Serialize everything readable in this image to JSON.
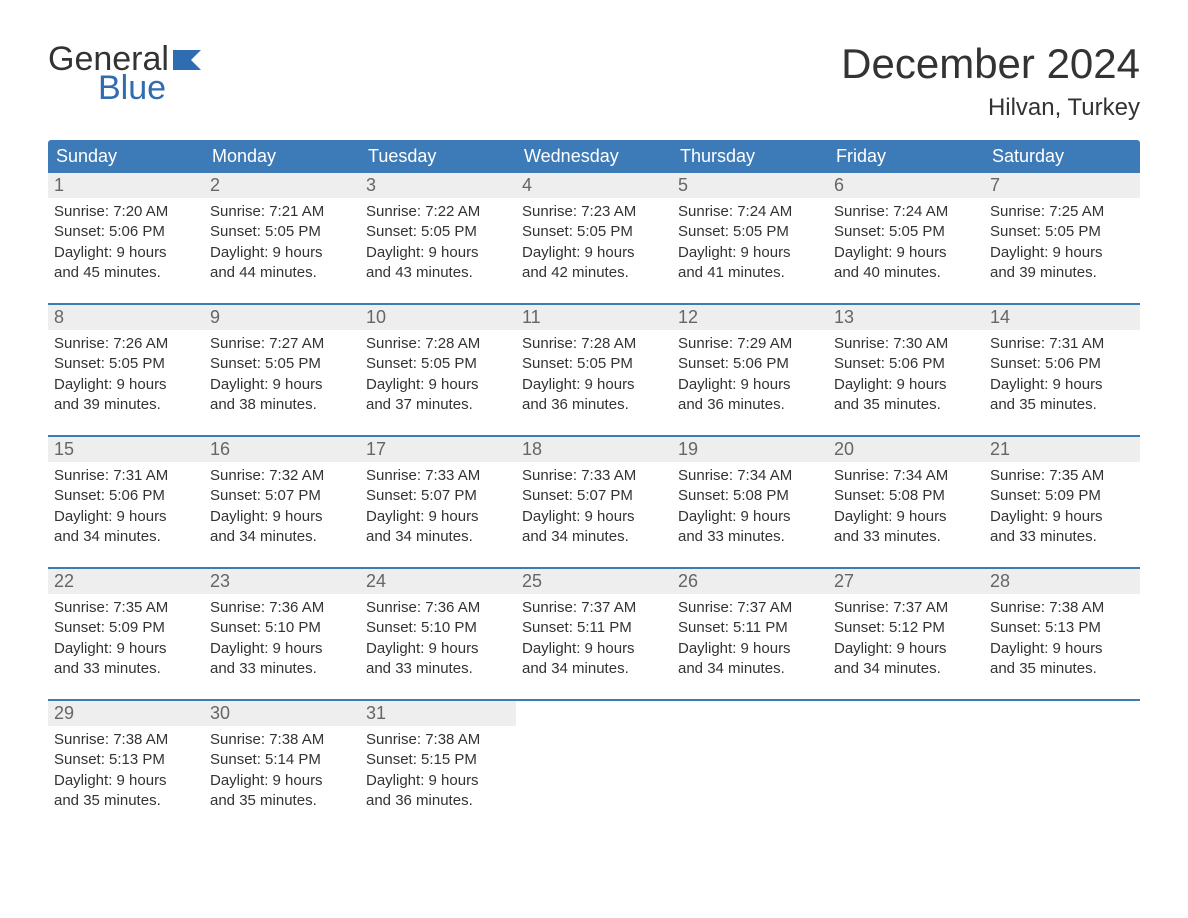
{
  "brand": {
    "word1": "General",
    "word2": "Blue",
    "accent_color": "#2f6db0",
    "text_color": "#333333"
  },
  "title": "December 2024",
  "location": "Hilvan, Turkey",
  "colors": {
    "header_bg": "#3d7ab8",
    "header_text": "#ffffff",
    "daynum_bg": "#eeeeee",
    "daynum_text": "#666666",
    "body_text": "#333333",
    "week_border": "#3d7ab8",
    "page_bg": "#ffffff"
  },
  "fonts": {
    "month_title_size_pt": 32,
    "location_size_pt": 18,
    "weekday_size_pt": 14,
    "daynum_size_pt": 14,
    "body_size_pt": 11
  },
  "weekdays": [
    "Sunday",
    "Monday",
    "Tuesday",
    "Wednesday",
    "Thursday",
    "Friday",
    "Saturday"
  ],
  "weeks": [
    [
      {
        "n": "1",
        "sunrise": "Sunrise: 7:20 AM",
        "sunset": "Sunset: 5:06 PM",
        "d1": "Daylight: 9 hours",
        "d2": "and 45 minutes."
      },
      {
        "n": "2",
        "sunrise": "Sunrise: 7:21 AM",
        "sunset": "Sunset: 5:05 PM",
        "d1": "Daylight: 9 hours",
        "d2": "and 44 minutes."
      },
      {
        "n": "3",
        "sunrise": "Sunrise: 7:22 AM",
        "sunset": "Sunset: 5:05 PM",
        "d1": "Daylight: 9 hours",
        "d2": "and 43 minutes."
      },
      {
        "n": "4",
        "sunrise": "Sunrise: 7:23 AM",
        "sunset": "Sunset: 5:05 PM",
        "d1": "Daylight: 9 hours",
        "d2": "and 42 minutes."
      },
      {
        "n": "5",
        "sunrise": "Sunrise: 7:24 AM",
        "sunset": "Sunset: 5:05 PM",
        "d1": "Daylight: 9 hours",
        "d2": "and 41 minutes."
      },
      {
        "n": "6",
        "sunrise": "Sunrise: 7:24 AM",
        "sunset": "Sunset: 5:05 PM",
        "d1": "Daylight: 9 hours",
        "d2": "and 40 minutes."
      },
      {
        "n": "7",
        "sunrise": "Sunrise: 7:25 AM",
        "sunset": "Sunset: 5:05 PM",
        "d1": "Daylight: 9 hours",
        "d2": "and 39 minutes."
      }
    ],
    [
      {
        "n": "8",
        "sunrise": "Sunrise: 7:26 AM",
        "sunset": "Sunset: 5:05 PM",
        "d1": "Daylight: 9 hours",
        "d2": "and 39 minutes."
      },
      {
        "n": "9",
        "sunrise": "Sunrise: 7:27 AM",
        "sunset": "Sunset: 5:05 PM",
        "d1": "Daylight: 9 hours",
        "d2": "and 38 minutes."
      },
      {
        "n": "10",
        "sunrise": "Sunrise: 7:28 AM",
        "sunset": "Sunset: 5:05 PM",
        "d1": "Daylight: 9 hours",
        "d2": "and 37 minutes."
      },
      {
        "n": "11",
        "sunrise": "Sunrise: 7:28 AM",
        "sunset": "Sunset: 5:05 PM",
        "d1": "Daylight: 9 hours",
        "d2": "and 36 minutes."
      },
      {
        "n": "12",
        "sunrise": "Sunrise: 7:29 AM",
        "sunset": "Sunset: 5:06 PM",
        "d1": "Daylight: 9 hours",
        "d2": "and 36 minutes."
      },
      {
        "n": "13",
        "sunrise": "Sunrise: 7:30 AM",
        "sunset": "Sunset: 5:06 PM",
        "d1": "Daylight: 9 hours",
        "d2": "and 35 minutes."
      },
      {
        "n": "14",
        "sunrise": "Sunrise: 7:31 AM",
        "sunset": "Sunset: 5:06 PM",
        "d1": "Daylight: 9 hours",
        "d2": "and 35 minutes."
      }
    ],
    [
      {
        "n": "15",
        "sunrise": "Sunrise: 7:31 AM",
        "sunset": "Sunset: 5:06 PM",
        "d1": "Daylight: 9 hours",
        "d2": "and 34 minutes."
      },
      {
        "n": "16",
        "sunrise": "Sunrise: 7:32 AM",
        "sunset": "Sunset: 5:07 PM",
        "d1": "Daylight: 9 hours",
        "d2": "and 34 minutes."
      },
      {
        "n": "17",
        "sunrise": "Sunrise: 7:33 AM",
        "sunset": "Sunset: 5:07 PM",
        "d1": "Daylight: 9 hours",
        "d2": "and 34 minutes."
      },
      {
        "n": "18",
        "sunrise": "Sunrise: 7:33 AM",
        "sunset": "Sunset: 5:07 PM",
        "d1": "Daylight: 9 hours",
        "d2": "and 34 minutes."
      },
      {
        "n": "19",
        "sunrise": "Sunrise: 7:34 AM",
        "sunset": "Sunset: 5:08 PM",
        "d1": "Daylight: 9 hours",
        "d2": "and 33 minutes."
      },
      {
        "n": "20",
        "sunrise": "Sunrise: 7:34 AM",
        "sunset": "Sunset: 5:08 PM",
        "d1": "Daylight: 9 hours",
        "d2": "and 33 minutes."
      },
      {
        "n": "21",
        "sunrise": "Sunrise: 7:35 AM",
        "sunset": "Sunset: 5:09 PM",
        "d1": "Daylight: 9 hours",
        "d2": "and 33 minutes."
      }
    ],
    [
      {
        "n": "22",
        "sunrise": "Sunrise: 7:35 AM",
        "sunset": "Sunset: 5:09 PM",
        "d1": "Daylight: 9 hours",
        "d2": "and 33 minutes."
      },
      {
        "n": "23",
        "sunrise": "Sunrise: 7:36 AM",
        "sunset": "Sunset: 5:10 PM",
        "d1": "Daylight: 9 hours",
        "d2": "and 33 minutes."
      },
      {
        "n": "24",
        "sunrise": "Sunrise: 7:36 AM",
        "sunset": "Sunset: 5:10 PM",
        "d1": "Daylight: 9 hours",
        "d2": "and 33 minutes."
      },
      {
        "n": "25",
        "sunrise": "Sunrise: 7:37 AM",
        "sunset": "Sunset: 5:11 PM",
        "d1": "Daylight: 9 hours",
        "d2": "and 34 minutes."
      },
      {
        "n": "26",
        "sunrise": "Sunrise: 7:37 AM",
        "sunset": "Sunset: 5:11 PM",
        "d1": "Daylight: 9 hours",
        "d2": "and 34 minutes."
      },
      {
        "n": "27",
        "sunrise": "Sunrise: 7:37 AM",
        "sunset": "Sunset: 5:12 PM",
        "d1": "Daylight: 9 hours",
        "d2": "and 34 minutes."
      },
      {
        "n": "28",
        "sunrise": "Sunrise: 7:38 AM",
        "sunset": "Sunset: 5:13 PM",
        "d1": "Daylight: 9 hours",
        "d2": "and 35 minutes."
      }
    ],
    [
      {
        "n": "29",
        "sunrise": "Sunrise: 7:38 AM",
        "sunset": "Sunset: 5:13 PM",
        "d1": "Daylight: 9 hours",
        "d2": "and 35 minutes."
      },
      {
        "n": "30",
        "sunrise": "Sunrise: 7:38 AM",
        "sunset": "Sunset: 5:14 PM",
        "d1": "Daylight: 9 hours",
        "d2": "and 35 minutes."
      },
      {
        "n": "31",
        "sunrise": "Sunrise: 7:38 AM",
        "sunset": "Sunset: 5:15 PM",
        "d1": "Daylight: 9 hours",
        "d2": "and 36 minutes."
      },
      null,
      null,
      null,
      null
    ]
  ]
}
